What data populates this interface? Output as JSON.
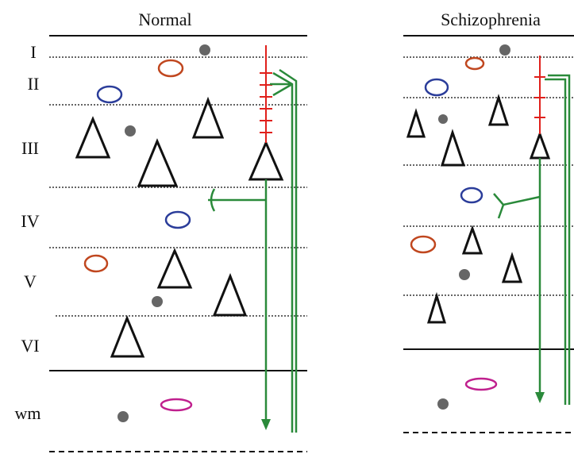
{
  "panels": [
    {
      "title": "Normal",
      "layers": [
        "I",
        "II",
        "III",
        "IV",
        "V",
        "VI",
        "wm"
      ]
    },
    {
      "title": "Schizophrenia"
    }
  ]
}
